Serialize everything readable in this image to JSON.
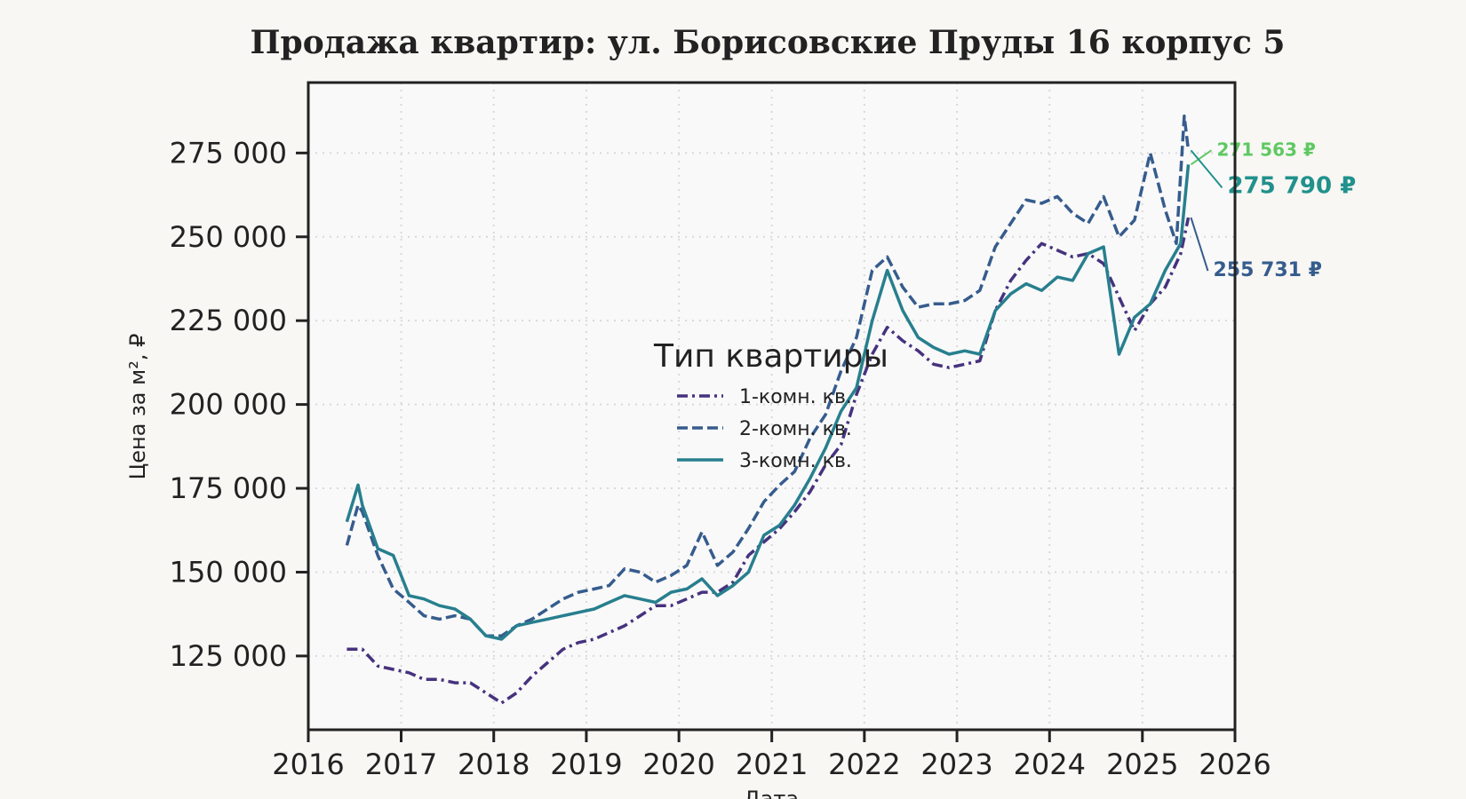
{
  "chart_data": {
    "type": "line",
    "title": "Продажа квартир: ул. Борисовские Пруды 16 корпус 5",
    "xlabel": "Дата",
    "ylabel": "Цена за м², ₽",
    "xlim": [
      "2016-01-01",
      "2026-01-01"
    ],
    "ylim": [
      103000,
      296000
    ],
    "x_ticks": [
      "2016",
      "2017",
      "2018",
      "2019",
      "2020",
      "2021",
      "2022",
      "2023",
      "2024",
      "2025",
      "2026"
    ],
    "y_ticks": [
      125000,
      150000,
      175000,
      200000,
      225000,
      250000,
      275000
    ],
    "y_tick_labels": [
      "125 000",
      "150 000",
      "175 000",
      "200 000",
      "225 000",
      "250 000",
      "275 000"
    ],
    "grid": true,
    "legend": {
      "title": "Тип квартиры",
      "placement": "center"
    },
    "series": [
      {
        "name": "1-комн. кв.",
        "color": "#46327e",
        "style": "dashdot",
        "points": [
          [
            "2016-06-01",
            127000
          ],
          [
            "2016-08-01",
            127000
          ],
          [
            "2016-10-01",
            122000
          ],
          [
            "2016-12-01",
            121000
          ],
          [
            "2017-02-01",
            120000
          ],
          [
            "2017-04-01",
            118000
          ],
          [
            "2017-06-01",
            118000
          ],
          [
            "2017-08-01",
            117000
          ],
          [
            "2017-10-01",
            117000
          ],
          [
            "2017-12-01",
            114000
          ],
          [
            "2018-02-01",
            111000
          ],
          [
            "2018-04-01",
            114000
          ],
          [
            "2018-06-01",
            119000
          ],
          [
            "2018-08-01",
            123000
          ],
          [
            "2018-10-01",
            127000
          ],
          [
            "2018-12-01",
            129000
          ],
          [
            "2019-02-01",
            130000
          ],
          [
            "2019-04-01",
            132000
          ],
          [
            "2019-06-01",
            134000
          ],
          [
            "2019-08-01",
            137000
          ],
          [
            "2019-10-01",
            140000
          ],
          [
            "2019-12-01",
            140000
          ],
          [
            "2020-02-01",
            142000
          ],
          [
            "2020-04-01",
            144000
          ],
          [
            "2020-06-01",
            144000
          ],
          [
            "2020-08-01",
            147000
          ],
          [
            "2020-10-01",
            155000
          ],
          [
            "2020-12-01",
            159000
          ],
          [
            "2021-02-01",
            163000
          ],
          [
            "2021-04-01",
            168000
          ],
          [
            "2021-06-01",
            174000
          ],
          [
            "2021-08-01",
            182000
          ],
          [
            "2021-10-01",
            188000
          ],
          [
            "2021-12-01",
            203000
          ],
          [
            "2022-02-01",
            215000
          ],
          [
            "2022-04-01",
            223000
          ],
          [
            "2022-06-01",
            219000
          ],
          [
            "2022-08-01",
            216000
          ],
          [
            "2022-10-01",
            212000
          ],
          [
            "2022-12-01",
            211000
          ],
          [
            "2023-02-01",
            212000
          ],
          [
            "2023-04-01",
            213000
          ],
          [
            "2023-06-01",
            228000
          ],
          [
            "2023-08-01",
            237000
          ],
          [
            "2023-10-01",
            243000
          ],
          [
            "2023-12-01",
            248000
          ],
          [
            "2024-02-01",
            246000
          ],
          [
            "2024-04-01",
            244000
          ],
          [
            "2024-06-01",
            245000
          ],
          [
            "2024-08-01",
            242000
          ],
          [
            "2024-10-01",
            232000
          ],
          [
            "2024-12-01",
            222000
          ],
          [
            "2025-02-01",
            230000
          ],
          [
            "2025-04-01",
            235000
          ],
          [
            "2025-06-01",
            245000
          ],
          [
            "2025-07-01",
            255731
          ]
        ]
      },
      {
        "name": "2-комн. кв.",
        "color": "#365c8d",
        "style": "dashed",
        "points": [
          [
            "2016-06-01",
            158000
          ],
          [
            "2016-07-15",
            170000
          ],
          [
            "2016-08-01",
            168000
          ],
          [
            "2016-10-01",
            155000
          ],
          [
            "2016-12-01",
            145000
          ],
          [
            "2017-02-01",
            141000
          ],
          [
            "2017-04-01",
            137000
          ],
          [
            "2017-06-01",
            136000
          ],
          [
            "2017-08-01",
            137000
          ],
          [
            "2017-10-01",
            136000
          ],
          [
            "2017-12-01",
            131000
          ],
          [
            "2018-02-01",
            131000
          ],
          [
            "2018-04-01",
            134000
          ],
          [
            "2018-06-01",
            136000
          ],
          [
            "2018-08-01",
            139000
          ],
          [
            "2018-10-01",
            142000
          ],
          [
            "2018-12-01",
            144000
          ],
          [
            "2019-02-01",
            145000
          ],
          [
            "2019-04-01",
            146000
          ],
          [
            "2019-06-01",
            151000
          ],
          [
            "2019-08-01",
            150000
          ],
          [
            "2019-10-01",
            147000
          ],
          [
            "2019-12-01",
            149000
          ],
          [
            "2020-02-01",
            152000
          ],
          [
            "2020-04-01",
            162000
          ],
          [
            "2020-06-01",
            152000
          ],
          [
            "2020-08-01",
            156000
          ],
          [
            "2020-10-01",
            163000
          ],
          [
            "2020-12-01",
            171000
          ],
          [
            "2021-02-01",
            176000
          ],
          [
            "2021-04-01",
            180000
          ],
          [
            "2021-06-01",
            190000
          ],
          [
            "2021-08-01",
            197000
          ],
          [
            "2021-10-01",
            210000
          ],
          [
            "2021-12-01",
            220000
          ],
          [
            "2022-02-01",
            240000
          ],
          [
            "2022-04-01",
            244000
          ],
          [
            "2022-06-01",
            235000
          ],
          [
            "2022-08-01",
            229000
          ],
          [
            "2022-10-01",
            230000
          ],
          [
            "2022-12-01",
            230000
          ],
          [
            "2023-02-01",
            231000
          ],
          [
            "2023-04-01",
            234000
          ],
          [
            "2023-06-01",
            247000
          ],
          [
            "2023-08-01",
            254000
          ],
          [
            "2023-10-01",
            261000
          ],
          [
            "2023-12-01",
            260000
          ],
          [
            "2024-02-01",
            262000
          ],
          [
            "2024-04-01",
            257000
          ],
          [
            "2024-06-01",
            254000
          ],
          [
            "2024-08-01",
            262000
          ],
          [
            "2024-10-01",
            250000
          ],
          [
            "2024-12-01",
            255000
          ],
          [
            "2025-02-01",
            275000
          ],
          [
            "2025-04-01",
            258000
          ],
          [
            "2025-05-15",
            248000
          ],
          [
            "2025-06-15",
            286000
          ],
          [
            "2025-07-01",
            275790
          ]
        ]
      },
      {
        "name": "3-комн. кв.",
        "color": "#277f8e",
        "style": "solid",
        "points": [
          [
            "2016-06-01",
            165000
          ],
          [
            "2016-07-15",
            176000
          ],
          [
            "2016-08-01",
            170000
          ],
          [
            "2016-10-01",
            157000
          ],
          [
            "2016-12-01",
            155000
          ],
          [
            "2017-02-01",
            143000
          ],
          [
            "2017-04-01",
            142000
          ],
          [
            "2017-06-01",
            140000
          ],
          [
            "2017-08-01",
            139000
          ],
          [
            "2017-10-01",
            136000
          ],
          [
            "2017-12-01",
            131000
          ],
          [
            "2018-02-01",
            130000
          ],
          [
            "2018-04-01",
            134000
          ],
          [
            "2018-06-01",
            135000
          ],
          [
            "2018-08-01",
            136000
          ],
          [
            "2018-10-01",
            137000
          ],
          [
            "2018-12-01",
            138000
          ],
          [
            "2019-02-01",
            139000
          ],
          [
            "2019-04-01",
            141000
          ],
          [
            "2019-06-01",
            143000
          ],
          [
            "2019-08-01",
            142000
          ],
          [
            "2019-10-01",
            141000
          ],
          [
            "2019-12-01",
            144000
          ],
          [
            "2020-02-01",
            145000
          ],
          [
            "2020-04-01",
            148000
          ],
          [
            "2020-06-01",
            143000
          ],
          [
            "2020-08-01",
            146000
          ],
          [
            "2020-10-01",
            150000
          ],
          [
            "2020-12-01",
            161000
          ],
          [
            "2021-02-01",
            164000
          ],
          [
            "2021-04-01",
            170000
          ],
          [
            "2021-06-01",
            178000
          ],
          [
            "2021-08-01",
            187000
          ],
          [
            "2021-10-01",
            198000
          ],
          [
            "2021-12-01",
            205000
          ],
          [
            "2022-02-01",
            225000
          ],
          [
            "2022-04-01",
            240000
          ],
          [
            "2022-06-01",
            228000
          ],
          [
            "2022-08-01",
            220000
          ],
          [
            "2022-10-01",
            217000
          ],
          [
            "2022-12-01",
            215000
          ],
          [
            "2023-02-01",
            216000
          ],
          [
            "2023-04-01",
            215000
          ],
          [
            "2023-06-01",
            228000
          ],
          [
            "2023-08-01",
            233000
          ],
          [
            "2023-10-01",
            236000
          ],
          [
            "2023-12-01",
            234000
          ],
          [
            "2024-02-01",
            238000
          ],
          [
            "2024-04-01",
            237000
          ],
          [
            "2024-06-01",
            245000
          ],
          [
            "2024-08-01",
            247000
          ],
          [
            "2024-10-01",
            215000
          ],
          [
            "2024-12-01",
            226000
          ],
          [
            "2025-02-01",
            230000
          ],
          [
            "2025-04-01",
            240000
          ],
          [
            "2025-06-01",
            248000
          ],
          [
            "2025-07-01",
            271563
          ]
        ]
      }
    ],
    "annotations": [
      {
        "text": "271 563 ₽",
        "color": "#5ec962",
        "series": "3-комн. кв."
      },
      {
        "text": "275 790 ₽",
        "color": "#21918c",
        "series": "2-комн. кв."
      },
      {
        "text": "255 731 ₽",
        "color": "#365c8d",
        "series": "1-комн. кв."
      }
    ]
  }
}
